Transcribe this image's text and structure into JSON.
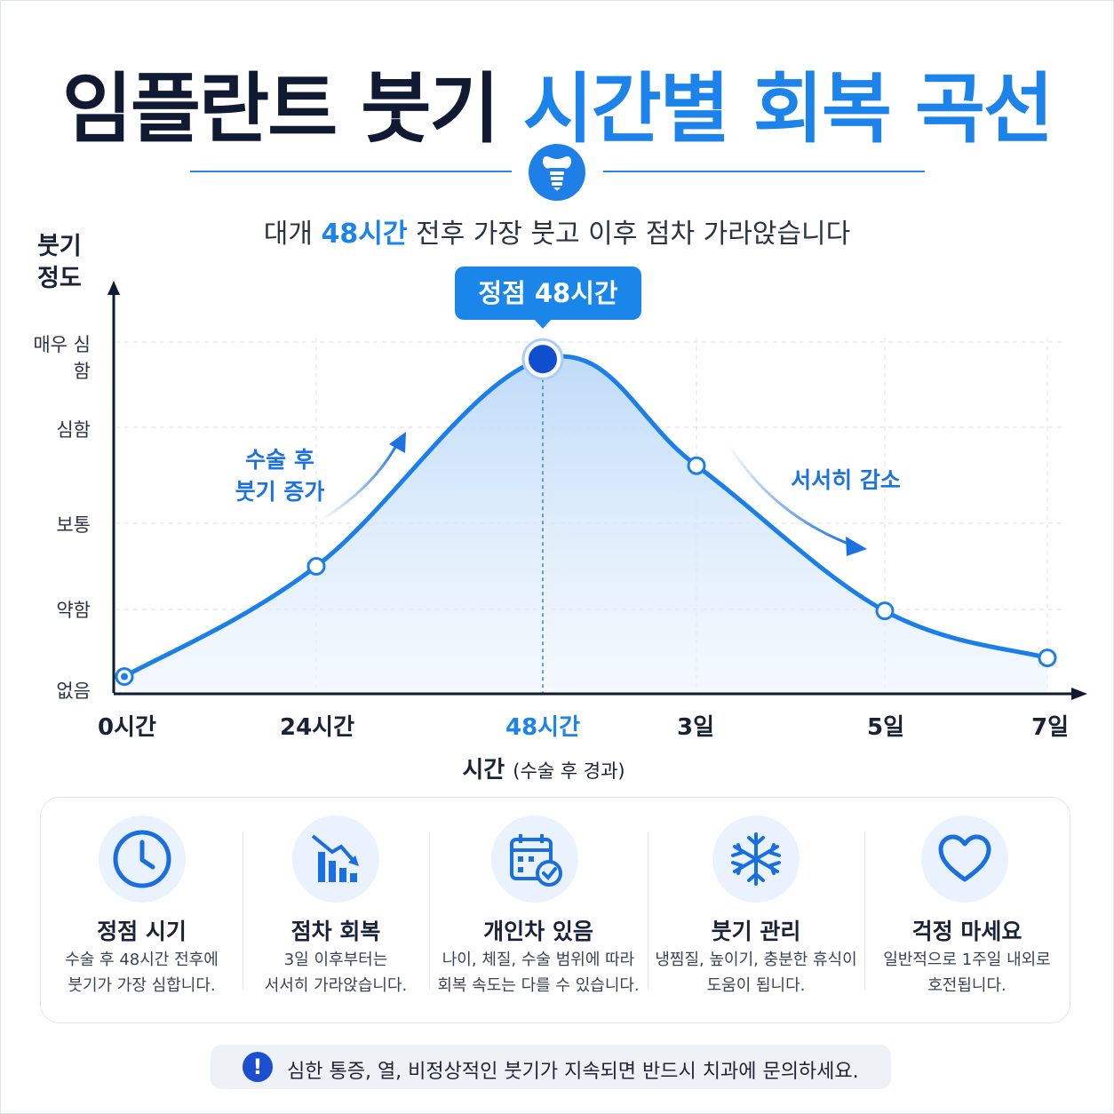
{
  "title": {
    "part1": "임플란트 붓기",
    "part2": "시간별 회복 곡선"
  },
  "subtitle": {
    "pre": "대개 ",
    "highlight": "48시간",
    "post": " 전후 가장 붓고 이후 점차 가라앉습니다"
  },
  "colors": {
    "accent": "#1c83ea",
    "curve": "#1a7fe8",
    "fill": "#d6e8fb",
    "dark": "#101a33",
    "axis": "#101a33"
  },
  "chart_data": {
    "type": "area",
    "ylabel": "붓기 정도",
    "ylabel_lines": [
      "붓기",
      "정도"
    ],
    "xlabel": "시간",
    "xlabel_note": "(수술 후 경과)",
    "y_levels": [
      "없음",
      "약함",
      "보통",
      "심함",
      "매우 심함"
    ],
    "x_ticks": [
      {
        "label": "0시간",
        "hours": 0
      },
      {
        "label": "24시간",
        "hours": 24
      },
      {
        "label": "48시간",
        "hours": 48,
        "highlight": true
      },
      {
        "label": "3일",
        "hours": 72
      },
      {
        "label": "5일",
        "hours": 120
      },
      {
        "label": "7일",
        "hours": 168
      }
    ],
    "points": [
      {
        "hours": 0,
        "level": 0.1
      },
      {
        "hours": 24,
        "level": 1.5
      },
      {
        "hours": 48,
        "level": 3.8,
        "peak": true
      },
      {
        "hours": 72,
        "level": 2.6
      },
      {
        "hours": 120,
        "level": 0.98
      },
      {
        "hours": 168,
        "level": 0.35
      }
    ],
    "peak_label": "정점 48시간",
    "annotations": [
      {
        "lines": [
          "수술 후",
          "붓기 증가"
        ]
      },
      {
        "lines": [
          "서서히 감소"
        ]
      }
    ],
    "grid": true
  },
  "cards": [
    {
      "icon": "clock-icon",
      "title": "정점 시기",
      "lines": [
        "수술 후 48시간 전후에",
        "붓기가 가장 심합니다."
      ]
    },
    {
      "icon": "decreasing-bar-chart-icon",
      "title": "점차 회복",
      "lines": [
        "3일 이후부터는",
        "서서히 가라앉습니다."
      ]
    },
    {
      "icon": "calendar-check-icon",
      "title": "개인차 있음",
      "lines": [
        "나이, 체질, 수술 범위에 따라",
        "회복 속도는 다를 수 있습니다."
      ]
    },
    {
      "icon": "snowflake-icon",
      "title": "붓기 관리",
      "lines": [
        "냉찜질, 높이기, 충분한 휴식이",
        "도움이 됩니다."
      ]
    },
    {
      "icon": "heart-icon",
      "title": "걱정 마세요",
      "lines": [
        "일반적으로 1주일 내외로",
        "호전됩니다."
      ]
    }
  ],
  "warning": {
    "icon": "exclamation-icon",
    "text": "심한 통증, 열, 비정상적인 붓기가 지속되면 반드시 치과에 문의하세요."
  }
}
